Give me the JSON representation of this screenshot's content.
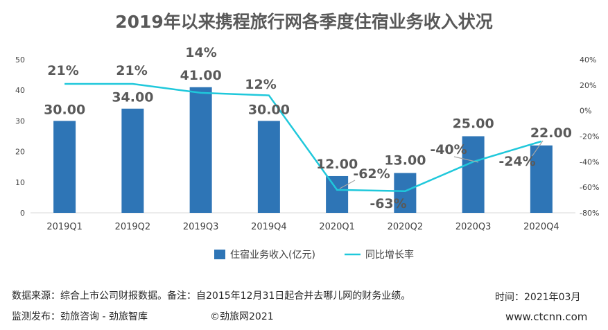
{
  "title": "2019年以来携程旅行网各季度住宿业务收入状况",
  "chart_data": {
    "type": "bar+line",
    "categories": [
      "2019Q1",
      "2019Q2",
      "2019Q3",
      "2019Q4",
      "2020Q1",
      "2020Q2",
      "2020Q3",
      "2020Q4"
    ],
    "series": [
      {
        "name": "住宿业务收入(亿元)",
        "type": "bar",
        "axis": "left",
        "color": "#2E75B6",
        "values": [
          30,
          34,
          41,
          30,
          12,
          13,
          25,
          22
        ],
        "labels": [
          "30.00",
          "34.00",
          "41.00",
          "30.00",
          "12.00",
          "13.00",
          "25.00",
          "22.00"
        ]
      },
      {
        "name": "同比增长率",
        "type": "line",
        "axis": "right",
        "color": "#1FC8DB",
        "values": [
          21,
          21,
          14,
          12,
          -62,
          -63,
          -40,
          -24
        ],
        "labels": [
          "21%",
          "21%",
          "14%",
          "12%",
          "-62%",
          "-63%",
          "-40%",
          "-24%"
        ]
      }
    ],
    "y_left": {
      "min": 0,
      "max": 50,
      "ticks": [
        "0",
        "10",
        "20",
        "30",
        "40",
        "50"
      ]
    },
    "y_right": {
      "min": -80,
      "max": 40,
      "ticks": [
        "-80%",
        "-60%",
        "-40%",
        "-20%",
        "0%",
        "20%",
        "40%"
      ]
    },
    "legend_position": "bottom"
  },
  "footer": {
    "source": "数据来源：综合上市公司财报数据。备注：自2015年12月31日起合并去哪儿网的财务业绩。",
    "time": "时间：2021年03月",
    "publisher": "监测发布：劲旅咨询 - 劲旅智库",
    "copyright": "©劲旅网2021",
    "website": "www.ctcnn.com"
  }
}
